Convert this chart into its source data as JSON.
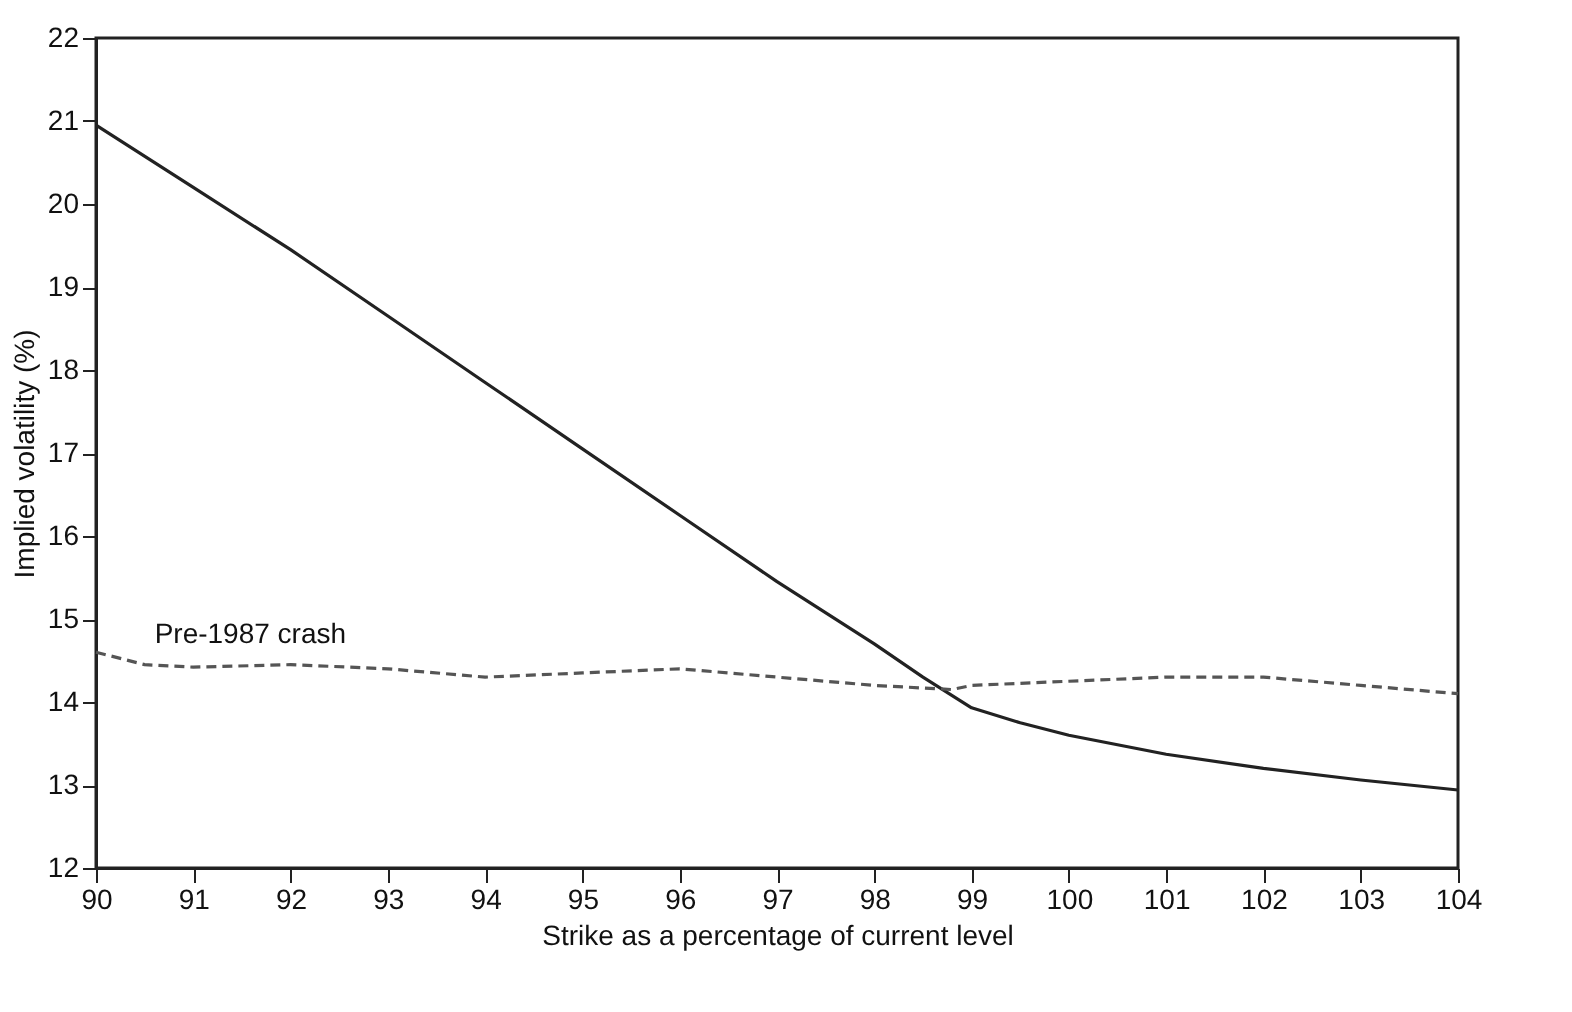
{
  "chart_data": {
    "type": "line",
    "xlabel": "Strike as a percentage of current level",
    "ylabel": "Implied volatility (%)",
    "xlim": [
      90,
      104
    ],
    "xticks": [
      90,
      91,
      92,
      93,
      94,
      95,
      96,
      97,
      98,
      99,
      100,
      101,
      102,
      103,
      104
    ],
    "ylim": [
      12,
      22
    ],
    "yticks": [
      12,
      13,
      14,
      15,
      16,
      17,
      18,
      19,
      20,
      21,
      22
    ],
    "grid": false,
    "marker": "none",
    "series": [
      {
        "color": "#222222",
        "line_style": "solid",
        "x": [
          90,
          91,
          92,
          93,
          94,
          95,
          96,
          97,
          98,
          98.5,
          99,
          99.5,
          100,
          101,
          102,
          103,
          104
        ],
        "values": [
          20.95,
          20.2,
          19.45,
          18.65,
          17.85,
          17.05,
          16.25,
          15.45,
          14.7,
          14.3,
          13.93,
          13.75,
          13.6,
          13.37,
          13.2,
          13.06,
          12.94
        ]
      },
      {
        "name": "Pre-1987 crash",
        "color": "#555555",
        "line_style": "dashed",
        "x": [
          90,
          90.5,
          91,
          92,
          93,
          94,
          95,
          96,
          97,
          98,
          98.8,
          99,
          100,
          101,
          102,
          103,
          104
        ],
        "values": [
          14.6,
          14.45,
          14.42,
          14.45,
          14.4,
          14.3,
          14.35,
          14.4,
          14.3,
          14.2,
          14.15,
          14.2,
          14.25,
          14.3,
          14.3,
          14.2,
          14.1
        ]
      }
    ]
  }
}
